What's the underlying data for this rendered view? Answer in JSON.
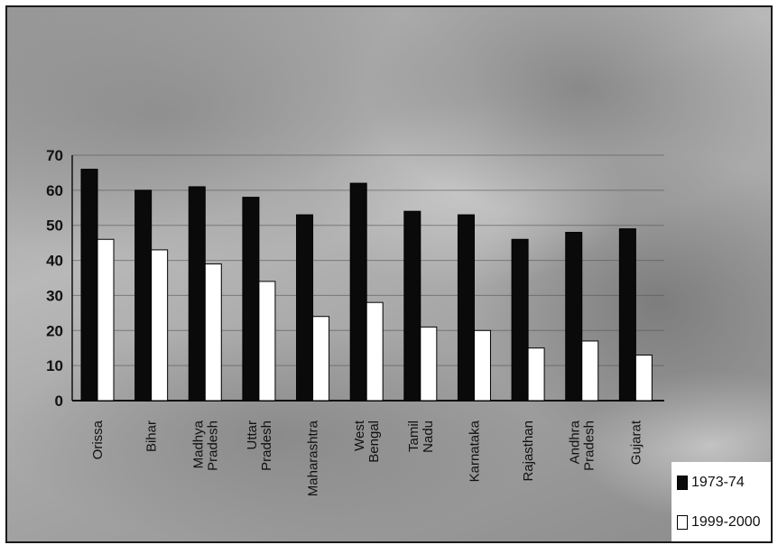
{
  "chart_data": {
    "type": "bar",
    "categories": [
      [
        "Orissa"
      ],
      [
        "Bihar"
      ],
      [
        "Madhya",
        "Pradesh"
      ],
      [
        "Uttar",
        "Pradesh"
      ],
      [
        "Maharashtra"
      ],
      [
        "West",
        "Bengal"
      ],
      [
        "Tamil",
        "Nadu"
      ],
      [
        "Karnataka"
      ],
      [
        "Rajasthan"
      ],
      [
        "Andhra",
        "Pradesh"
      ],
      [
        "Gujarat"
      ]
    ],
    "series": [
      {
        "name": "1973-74",
        "color": "#0a0a0a",
        "values": [
          66,
          60,
          61,
          58,
          53,
          62,
          54,
          53,
          46,
          48,
          49
        ]
      },
      {
        "name": "1999-2000",
        "color": "#ffffff",
        "values": [
          46,
          43,
          39,
          34,
          24,
          28,
          21,
          20,
          15,
          17,
          13
        ]
      }
    ],
    "ylim": [
      0,
      70
    ],
    "yticks": [
      "0",
      "10",
      "20",
      "30",
      "40",
      "50",
      "60",
      "70"
    ],
    "grid": true,
    "legend_position": "bottom-right"
  }
}
